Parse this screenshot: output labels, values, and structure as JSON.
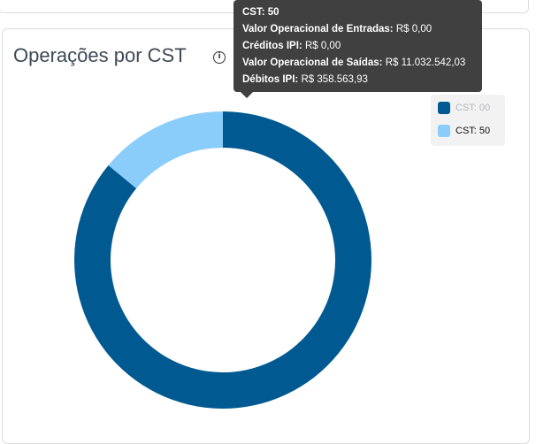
{
  "chart_card": {
    "title": "Operações por CST",
    "info_icon": "info-icon"
  },
  "chart_data": {
    "type": "pie",
    "donut": true,
    "categories": [
      "CST: 00",
      "CST: 50"
    ],
    "values": [
      86,
      14
    ],
    "colors": [
      "#005a91",
      "#8acdfb"
    ],
    "legend_placement": "top-right"
  },
  "legend": [
    {
      "label": "CST: 00",
      "hidden": true
    },
    {
      "label": "CST: 50",
      "hidden": false
    }
  ],
  "tooltip": {
    "title": "CST: 50",
    "rows": [
      {
        "label": "Valor Operacional de Entradas:",
        "value": "R$ 0,00"
      },
      {
        "label": "Créditos IPI:",
        "value": "R$ 0,00"
      },
      {
        "label": "Valor Operacional de Saídas:",
        "value": "R$ 11.032.542,03"
      },
      {
        "label": "Débitos IPI:",
        "value": "R$ 358.563,93"
      }
    ]
  }
}
